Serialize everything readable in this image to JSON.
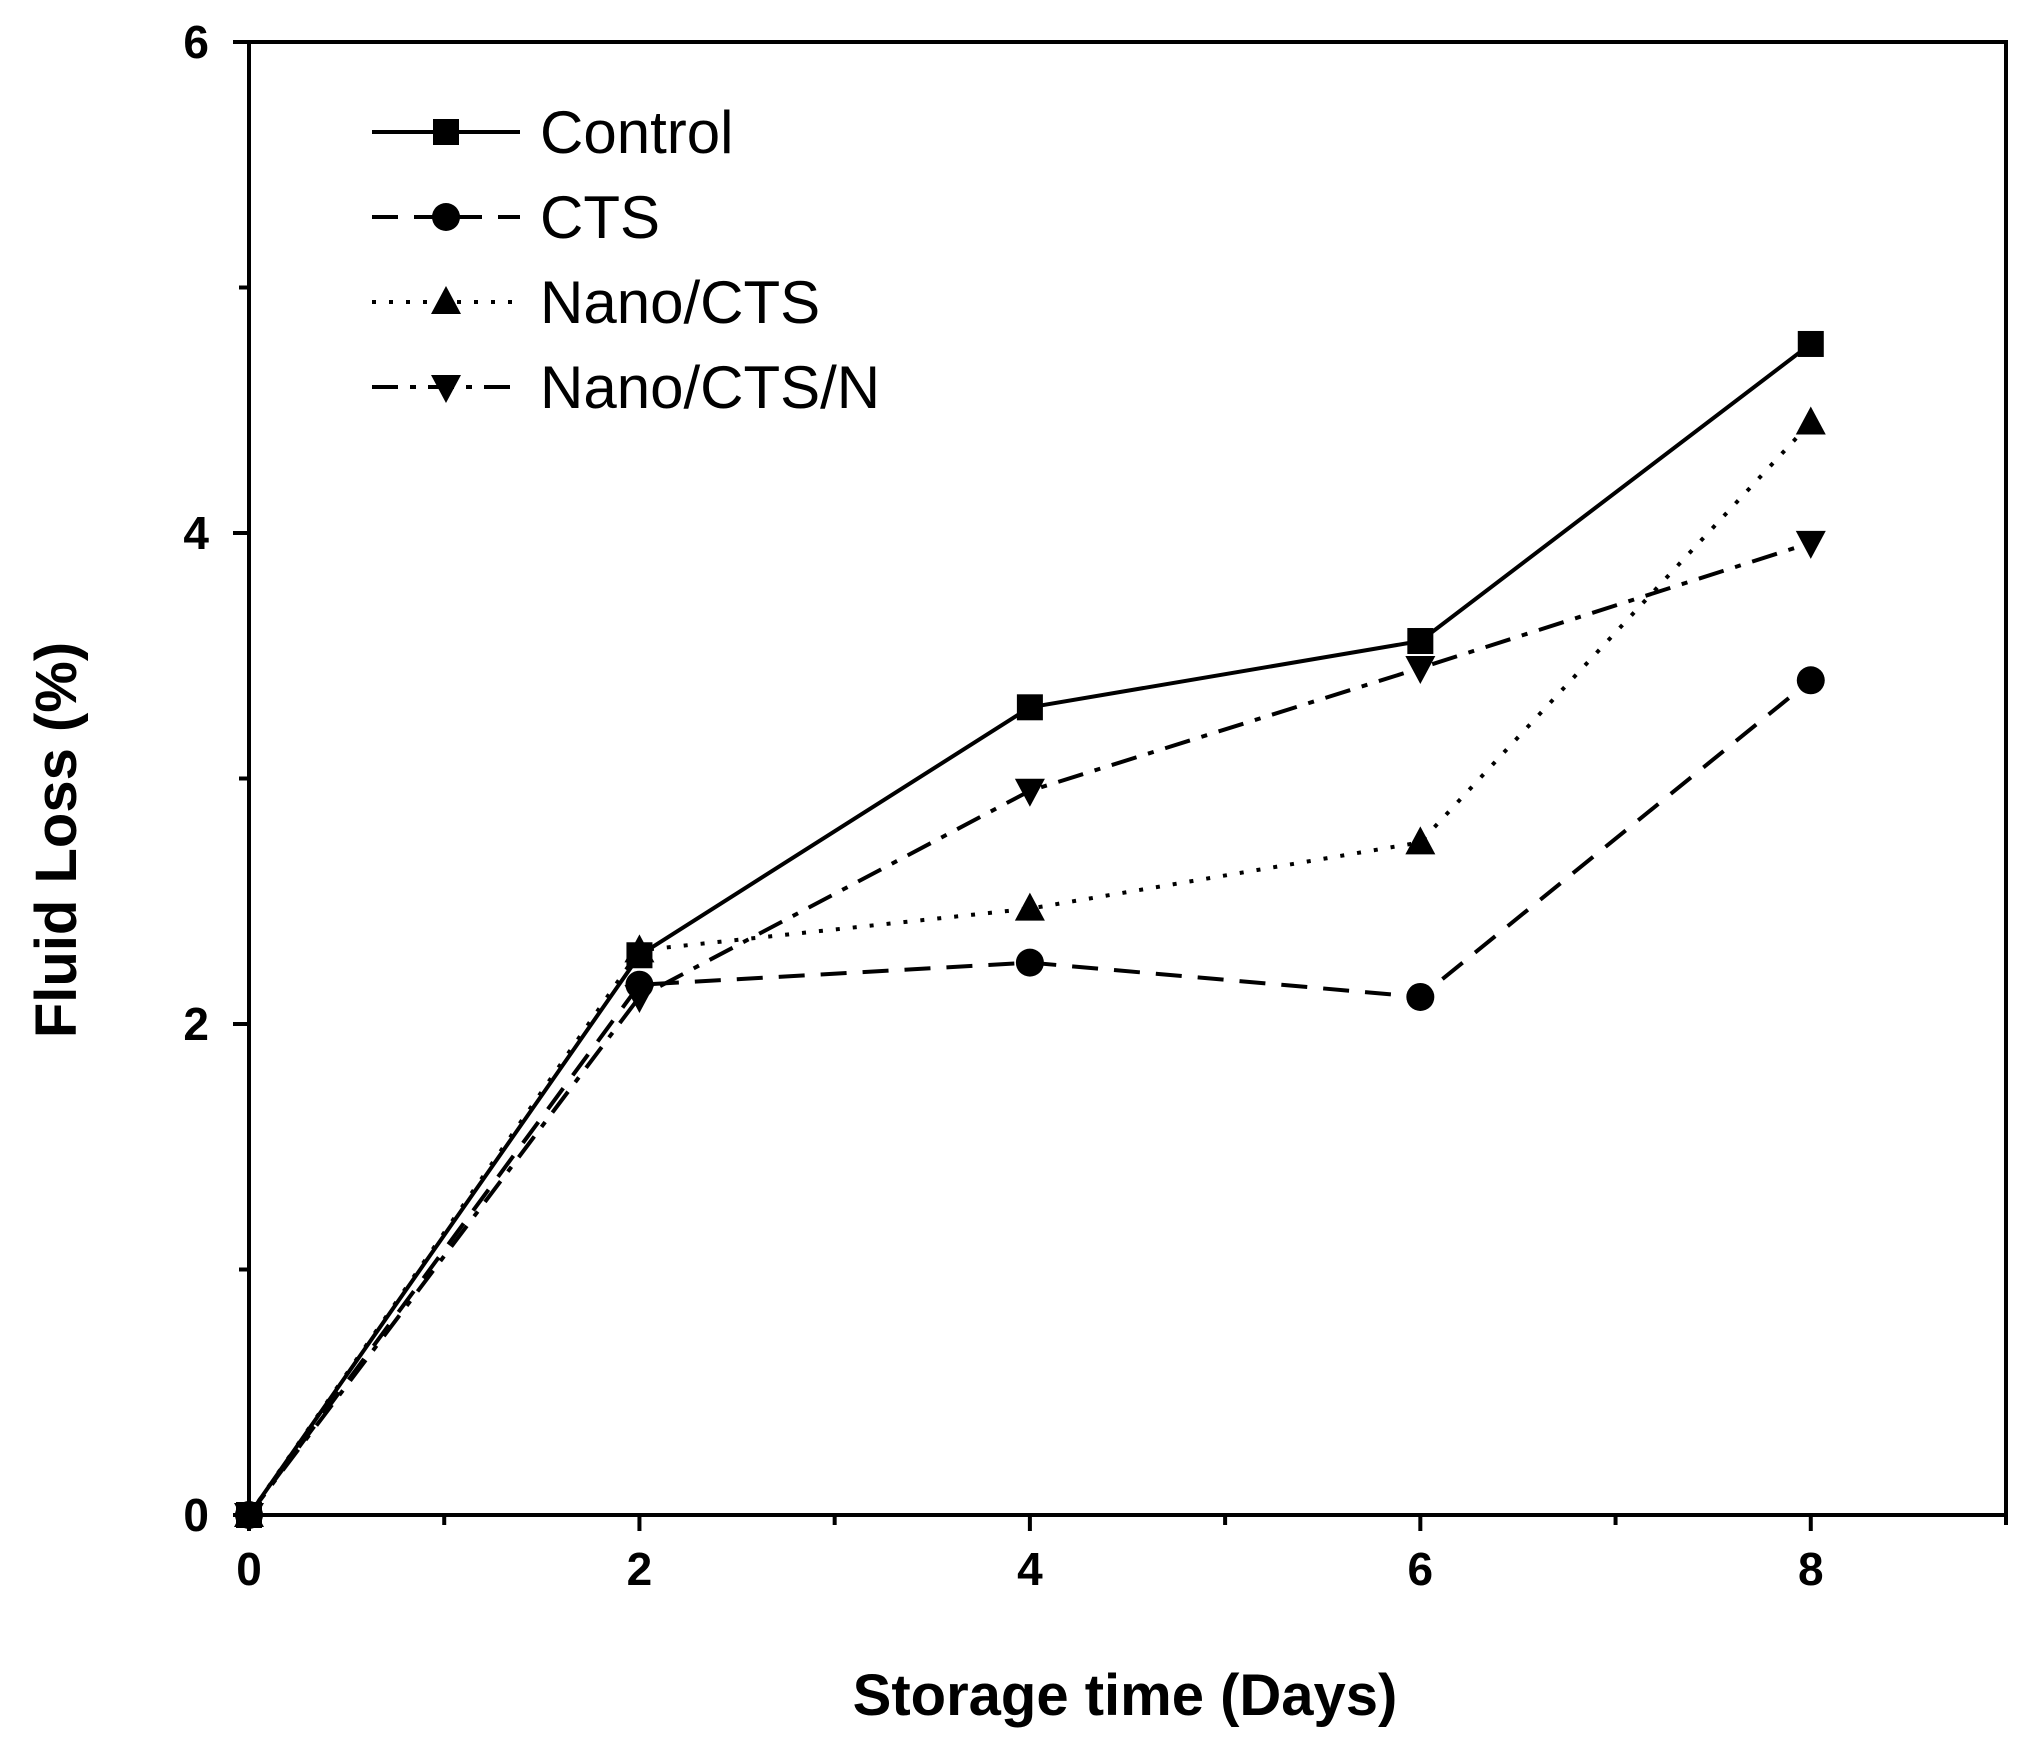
{
  "chart_data": {
    "type": "line",
    "title": "",
    "xlabel": "Storage time (Days)",
    "ylabel": "Fluid Loss (%)",
    "xlim": [
      0,
      9
    ],
    "ylim": [
      0,
      6
    ],
    "x_ticks": [
      0,
      2,
      4,
      6,
      8
    ],
    "x_tick_labels": [
      "0",
      "2",
      "4",
      "6",
      "8"
    ],
    "x_minor_ticks": [
      1,
      3,
      5,
      7,
      9
    ],
    "y_ticks": [
      0,
      2,
      4,
      6
    ],
    "y_tick_labels": [
      "0",
      "2",
      "4",
      "6"
    ],
    "y_minor_ticks": [
      1,
      3,
      5
    ],
    "grid": false,
    "legend_position": "top-left",
    "series": [
      {
        "name": "Control",
        "marker": "square",
        "line_style": "solid",
        "x": [
          0,
          2,
          4,
          6,
          8
        ],
        "values": [
          0,
          2.28,
          3.29,
          3.56,
          4.77
        ]
      },
      {
        "name": "CTS",
        "marker": "circle",
        "line_style": "dashed",
        "x": [
          0,
          2,
          4,
          6,
          8
        ],
        "values": [
          0,
          2.16,
          2.25,
          2.11,
          3.4
        ]
      },
      {
        "name": "Nano/CTS",
        "marker": "triangle-up",
        "line_style": "dotted",
        "x": [
          0,
          2,
          4,
          6,
          8
        ],
        "values": [
          0,
          2.3,
          2.47,
          2.74,
          4.45
        ]
      },
      {
        "name": "Nano/CTS/N",
        "marker": "triangle-down",
        "line_style": "dash-dot",
        "x": [
          0,
          2,
          4,
          6,
          8
        ],
        "values": [
          0,
          2.11,
          2.95,
          3.45,
          3.96
        ]
      }
    ]
  },
  "colors": {
    "line": "#000000",
    "background": "#ffffff"
  }
}
